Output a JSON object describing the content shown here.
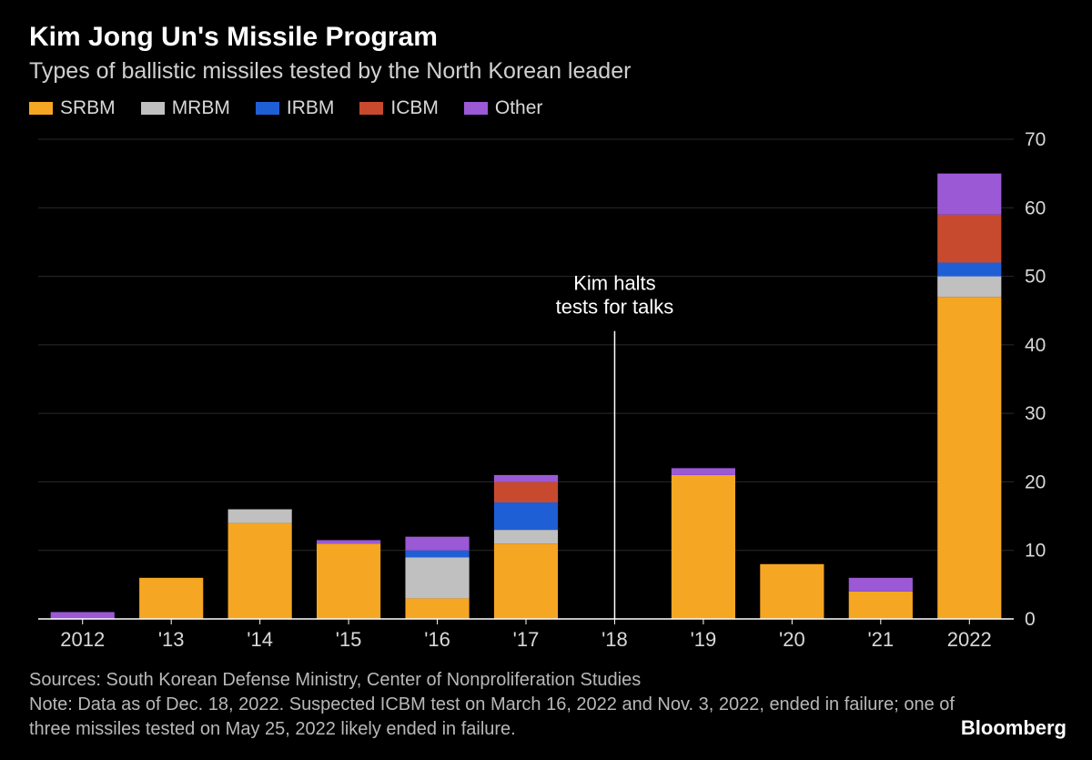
{
  "title": "Kim Jong Un's Missile Program",
  "subtitle": "Types of ballistic missiles tested by the North Korean leader",
  "legend": [
    {
      "label": "SRBM",
      "color": "#f5a623"
    },
    {
      "label": "MRBM",
      "color": "#c0c0c0"
    },
    {
      "label": "IRBM",
      "color": "#1f5fd6"
    },
    {
      "label": "ICBM",
      "color": "#c84a2e"
    },
    {
      "label": "Other",
      "color": "#9b59d6"
    }
  ],
  "chart": {
    "type": "stacked-bar",
    "background_color": "#000000",
    "ylim": [
      0,
      70
    ],
    "ytick_step": 10,
    "yticks": [
      0,
      10,
      20,
      30,
      40,
      50,
      60,
      70
    ],
    "grid_color": "#2a2a2a",
    "x_axis_line_color": "#ffffff",
    "bar_width_ratio": 0.72,
    "axis_fontsize": 21,
    "x_labels": [
      "2012",
      "'13",
      "'14",
      "'15",
      "'16",
      "'17",
      "'18",
      "'19",
      "'20",
      "'21",
      "2022"
    ],
    "series_order": [
      "SRBM",
      "MRBM",
      "IRBM",
      "ICBM",
      "Other"
    ],
    "series_colors": {
      "SRBM": "#f5a623",
      "MRBM": "#c0c0c0",
      "IRBM": "#1f5fd6",
      "ICBM": "#c84a2e",
      "Other": "#9b59d6"
    },
    "data": [
      {
        "year": "2012",
        "SRBM": 0,
        "MRBM": 0,
        "IRBM": 0,
        "ICBM": 0,
        "Other": 1
      },
      {
        "year": "'13",
        "SRBM": 6,
        "MRBM": 0,
        "IRBM": 0,
        "ICBM": 0,
        "Other": 0
      },
      {
        "year": "'14",
        "SRBM": 14,
        "MRBM": 2,
        "IRBM": 0,
        "ICBM": 0,
        "Other": 0
      },
      {
        "year": "'15",
        "SRBM": 11,
        "MRBM": 0,
        "IRBM": 0,
        "ICBM": 0,
        "Other": 0.5
      },
      {
        "year": "'16",
        "SRBM": 3,
        "MRBM": 6,
        "IRBM": 1,
        "ICBM": 0,
        "Other": 2
      },
      {
        "year": "'17",
        "SRBM": 11,
        "MRBM": 2,
        "IRBM": 4,
        "ICBM": 3,
        "Other": 1
      },
      {
        "year": "'18",
        "SRBM": 0,
        "MRBM": 0,
        "IRBM": 0,
        "ICBM": 0,
        "Other": 0
      },
      {
        "year": "'19",
        "SRBM": 21,
        "MRBM": 0,
        "IRBM": 0,
        "ICBM": 0,
        "Other": 1
      },
      {
        "year": "'20",
        "SRBM": 8,
        "MRBM": 0,
        "IRBM": 0,
        "ICBM": 0,
        "Other": 0
      },
      {
        "year": "'21",
        "SRBM": 4,
        "MRBM": 0,
        "IRBM": 0,
        "ICBM": 0,
        "Other": 2
      },
      {
        "year": "2022",
        "SRBM": 47,
        "MRBM": 3,
        "IRBM": 2,
        "ICBM": 7,
        "Other": 6
      }
    ],
    "annotation": {
      "x_index": 6,
      "line1": "Kim halts",
      "line2": "tests for talks",
      "line_color": "#ffffff"
    }
  },
  "footer": {
    "sources": "Sources: South Korean Defense Ministry, Center of Nonproliferation Studies",
    "note": "Note: Data as of Dec. 18, 2022. Suspected ICBM test on March 16, 2022 and Nov. 3, 2022, ended in failure; one of three missiles tested on May 25, 2022 likely ended in failure.",
    "brand": "Bloomberg"
  }
}
